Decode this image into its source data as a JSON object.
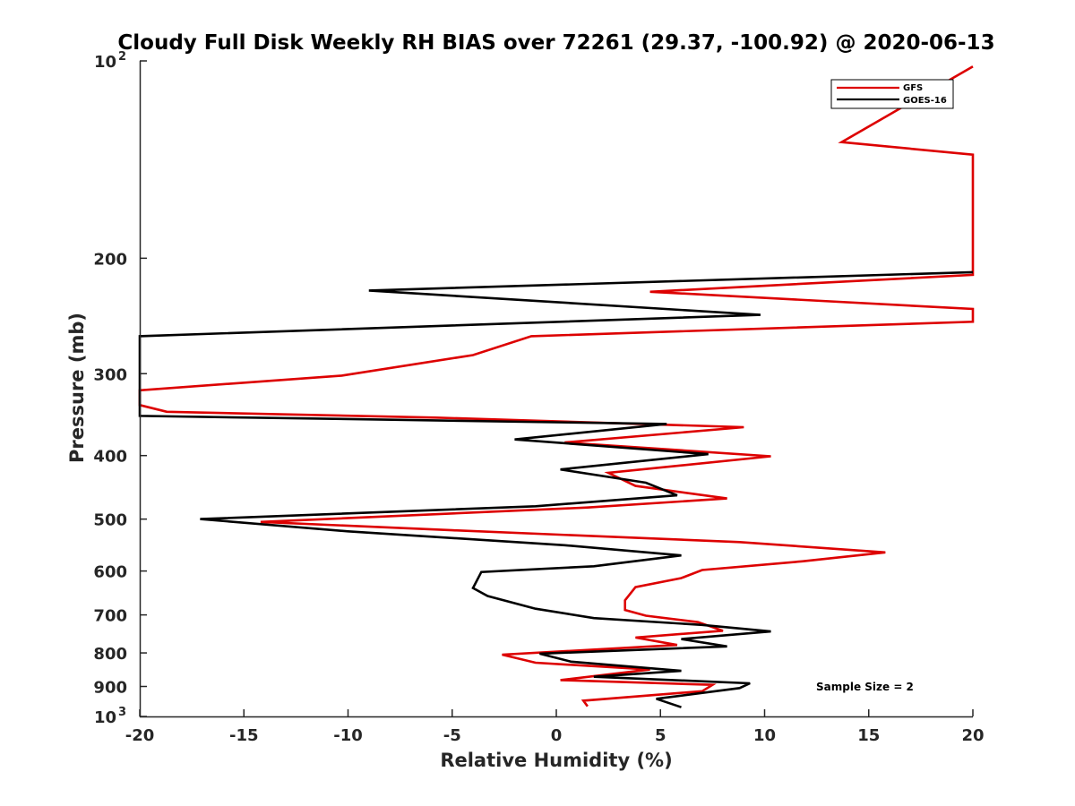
{
  "chart_data": {
    "type": "line",
    "title": "Cloudy Full Disk Weekly RH BIAS over 72261 (29.37, -100.92) @ 2020-06-13",
    "xlabel": "Relative Humidity (%)",
    "ylabel": "Pressure (mb)",
    "xlim": [
      -20,
      20
    ],
    "ylim": [
      100,
      1000
    ],
    "y_scale": "log",
    "y_reversed": true,
    "grid": false,
    "legend_position": "top-right",
    "x_ticks": [
      "-20",
      "-15",
      "-10",
      "-5",
      "0",
      "5",
      "10",
      "15",
      "20"
    ],
    "y_ticks": [
      {
        "value": 100,
        "base": "10",
        "exp": "2"
      },
      {
        "value": 200,
        "label": "200"
      },
      {
        "value": 300,
        "label": "300"
      },
      {
        "value": 400,
        "label": "400"
      },
      {
        "value": 500,
        "label": "500"
      },
      {
        "value": 600,
        "label": "600"
      },
      {
        "value": 700,
        "label": "700"
      },
      {
        "value": 800,
        "label": "800"
      },
      {
        "value": 900,
        "label": "900"
      },
      {
        "value": 1000,
        "base": "10",
        "exp": "3"
      }
    ],
    "annotation": "Sample Size = 2",
    "series": [
      {
        "name": "GFS",
        "color": "#dd0000",
        "points": [
          [
            20,
            102
          ],
          [
            13.7,
            133
          ],
          [
            20,
            139
          ],
          [
            20,
            212
          ],
          [
            4.5,
            225
          ],
          [
            20,
            239
          ],
          [
            20,
            250
          ],
          [
            -1.2,
            263
          ],
          [
            -4,
            281
          ],
          [
            -10.3,
            302
          ],
          [
            -20,
            318
          ],
          [
            -20,
            335
          ],
          [
            -18.7,
            343
          ],
          [
            -5.8,
            350
          ],
          [
            9,
            362
          ],
          [
            0.4,
            382
          ],
          [
            10.3,
            401
          ],
          [
            2.5,
            425
          ],
          [
            3.8,
            445
          ],
          [
            8.2,
            465
          ],
          [
            1.5,
            480
          ],
          [
            -14.2,
            505
          ],
          [
            -5,
            520
          ],
          [
            8.8,
            542
          ],
          [
            15.8,
            562
          ],
          [
            11.8,
            580
          ],
          [
            7,
            598
          ],
          [
            6,
            615
          ],
          [
            3.8,
            635
          ],
          [
            3.3,
            665
          ],
          [
            3.3,
            688
          ],
          [
            4.3,
            702
          ],
          [
            6.8,
            718
          ],
          [
            8,
            740
          ],
          [
            3.8,
            758
          ],
          [
            5.8,
            778
          ],
          [
            -2.6,
            805
          ],
          [
            -1,
            828
          ],
          [
            4.5,
            848
          ],
          [
            0.2,
            880
          ],
          [
            7.5,
            895
          ],
          [
            7,
            915
          ],
          [
            1.3,
            946
          ],
          [
            1.5,
            965
          ]
        ]
      },
      {
        "name": "GOES-16",
        "color": "#000000",
        "points": [
          [
            20,
            210
          ],
          [
            -9,
            224
          ],
          [
            9.8,
            244
          ],
          [
            -20,
            263
          ],
          [
            -20,
            348
          ],
          [
            5.3,
            358
          ],
          [
            -2,
            378
          ],
          [
            7.3,
            398
          ],
          [
            0.2,
            420
          ],
          [
            4.3,
            440
          ],
          [
            5.8,
            460
          ],
          [
            -1,
            478
          ],
          [
            -17.1,
            500
          ],
          [
            -10,
            522
          ],
          [
            0.4,
            548
          ],
          [
            6,
            568
          ],
          [
            1.8,
            590
          ],
          [
            -3.6,
            602
          ],
          [
            -4,
            637
          ],
          [
            -3.3,
            655
          ],
          [
            -1,
            685
          ],
          [
            1.8,
            708
          ],
          [
            7,
            725
          ],
          [
            10.3,
            742
          ],
          [
            6,
            762
          ],
          [
            8.2,
            782
          ],
          [
            -0.8,
            802
          ],
          [
            0.7,
            825
          ],
          [
            6,
            852
          ],
          [
            1.8,
            870
          ],
          [
            9.3,
            890
          ],
          [
            8.8,
            905
          ],
          [
            4.8,
            940
          ],
          [
            6,
            968
          ]
        ]
      }
    ]
  }
}
